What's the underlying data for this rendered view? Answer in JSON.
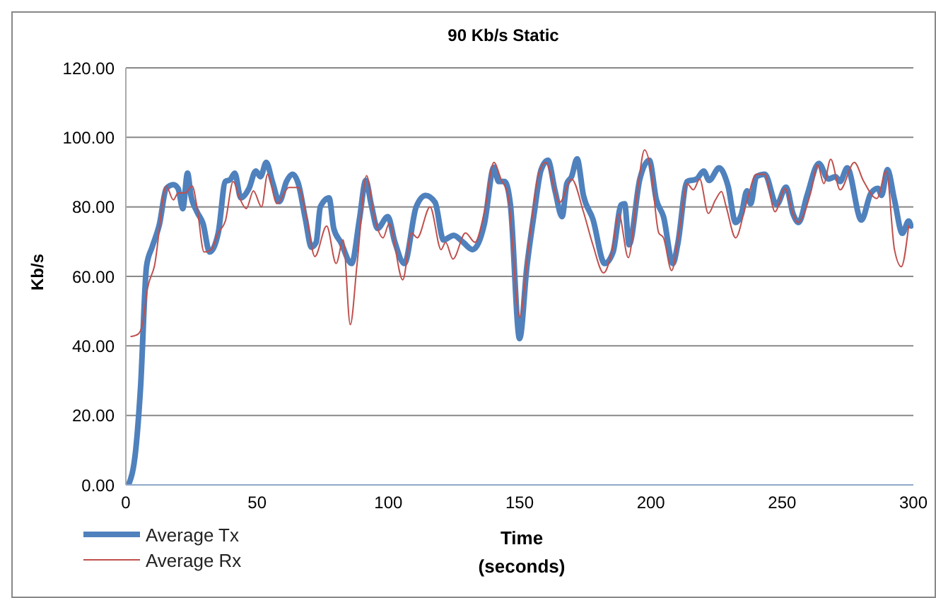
{
  "chart_data": {
    "type": "line",
    "title": "90 Kb/s Static",
    "xlabel": "Time (seconds)",
    "ylabel": "Kb/s",
    "xlim": [
      0,
      300
    ],
    "xticks": [
      0,
      50,
      100,
      150,
      200,
      250,
      300
    ],
    "ylim": [
      0,
      120
    ],
    "yticks": [
      {
        "value": 0,
        "label": "0.00"
      },
      {
        "value": 20,
        "label": "20.00"
      },
      {
        "value": 40,
        "label": "40.00"
      },
      {
        "value": 60,
        "label": "60.00"
      },
      {
        "value": 80,
        "label": "80.00"
      },
      {
        "value": 100,
        "label": "100.00"
      },
      {
        "value": 120,
        "label": "120.00"
      }
    ],
    "grid": "y",
    "legend": "bottom left",
    "marker": "none",
    "series": [
      {
        "name": "Average Tx",
        "color": "#4f81bd",
        "x": [
          1,
          3.8,
          5.6,
          7.9,
          10,
          12.8,
          15.4,
          18.1,
          19.9,
          21.7,
          23.5,
          24.8,
          27.1,
          29.4,
          31.9,
          35.2,
          37.9,
          39.7,
          41.5,
          43.8,
          46.9,
          49.5,
          51.3,
          53.5,
          55.8,
          58.5,
          61.2,
          63.5,
          65.7,
          68.4,
          70.7,
          72.5,
          74.1,
          77.4,
          79.2,
          81.9,
          86,
          89,
          91.4,
          93.5,
          95.9,
          99.8,
          102.5,
          106.1,
          110.6,
          114.2,
          117.8,
          121,
          124.9,
          128.5,
          132.1,
          136.6,
          140.2,
          142,
          144.3,
          146.5,
          150,
          152.8,
          155.5,
          158.2,
          160.8,
          163.5,
          166.2,
          168,
          169.8,
          171.9,
          174.3,
          177.9,
          182.4,
          185.6,
          188.7,
          190,
          191.7,
          195.8,
          199.4,
          202.1,
          204.8,
          208.4,
          210.2,
          213.8,
          217.4,
          220.1,
          222.2,
          226,
          229.4,
          232.3,
          234.5,
          236.6,
          238,
          240.2,
          243.4,
          247.9,
          251.5,
          254.2,
          256.3,
          259.5,
          264,
          267.6,
          270.3,
          272.1,
          274.8,
          280.2,
          283.8,
          286.5,
          287.9,
          290.1,
          292.8,
          295.8,
          298.2,
          299.1
        ],
        "values": [
          0,
          10.3,
          28,
          63,
          68.4,
          75,
          85.3,
          86.4,
          85.3,
          79.5,
          89.7,
          83.3,
          78.6,
          75.2,
          67,
          72.5,
          87.3,
          87.8,
          89.7,
          82.6,
          85.3,
          90.3,
          88.7,
          92.8,
          87.3,
          81.5,
          87.3,
          89.4,
          86.7,
          76.5,
          68.4,
          69.8,
          80,
          82.6,
          73.8,
          69.8,
          63.7,
          76.5,
          87.6,
          80.6,
          73.8,
          77.2,
          69.8,
          63.7,
          80,
          83.3,
          81.3,
          70.5,
          71.8,
          69.8,
          67.7,
          75.2,
          91.4,
          87.3,
          87.3,
          80.6,
          42.1,
          63,
          77.9,
          90.7,
          93.4,
          84.6,
          77.2,
          86.7,
          88.7,
          93.8,
          83.3,
          76.5,
          63.7,
          67,
          80.6,
          80.9,
          69.1,
          88,
          93.4,
          82,
          77.2,
          63.7,
          69.1,
          87.3,
          88,
          90.3,
          87.6,
          91.2,
          86,
          75.5,
          77.9,
          84.6,
          80.9,
          88.7,
          89.4,
          80.6,
          85.7,
          77.9,
          75.5,
          83.3,
          92.5,
          88,
          88.7,
          87.3,
          91.2,
          76.2,
          83.9,
          85.3,
          83.3,
          90.7,
          82,
          72.4,
          75.9,
          74.5
        ]
      },
      {
        "name": "Average Rx",
        "color": "#c0504d",
        "x": [
          2,
          4.7,
          6.5,
          8.2,
          10.9,
          15.4,
          18.1,
          19.9,
          22.6,
          25.3,
          27.1,
          29.8,
          32.5,
          35.2,
          37.9,
          40.9,
          43.3,
          45.9,
          48.6,
          51.7,
          54,
          57.6,
          62.1,
          65.7,
          69,
          72,
          76.5,
          80.1,
          82.8,
          85.5,
          88.1,
          91.7,
          94.4,
          98,
          100.3,
          105.5,
          108.8,
          111,
          115.9,
          120.1,
          121.8,
          124.6,
          129.4,
          133,
          136.6,
          140.2,
          142.9,
          145.6,
          150,
          153.6,
          157.2,
          159.9,
          165.3,
          169.8,
          174.3,
          177.9,
          182,
          185.1,
          187.8,
          191.4,
          194.9,
          197.6,
          200,
          203,
          204.8,
          207.9,
          211,
          213.8,
          216.2,
          218.6,
          221.9,
          224.6,
          226.9,
          228.7,
          232.3,
          236.2,
          240.2,
          243.4,
          247.3,
          251.1,
          254.2,
          256,
          261,
          263.5,
          265.9,
          268.5,
          272.1,
          277.5,
          281.1,
          286.1,
          289.7,
          292.8,
          295.4,
          298.2
        ],
        "values": [
          42.7,
          43.4,
          46.8,
          56.3,
          63,
          86,
          82,
          84,
          84,
          86,
          80,
          67,
          67.7,
          72.5,
          75.9,
          87.3,
          82.6,
          79.5,
          84.6,
          80,
          89.4,
          80.9,
          85.6,
          85.6,
          76.5,
          65.7,
          74.5,
          63.7,
          70.5,
          46.1,
          63.7,
          89,
          77.9,
          71.1,
          75.2,
          59,
          72.5,
          71.1,
          80,
          67.7,
          69.8,
          65,
          72.5,
          69.8,
          78.6,
          92.8,
          88,
          83.3,
          48.2,
          69.8,
          89.4,
          92.8,
          81.3,
          88,
          78.6,
          69.1,
          61,
          67,
          77.9,
          65.4,
          84.6,
          96.4,
          90.7,
          72.5,
          71.1,
          61.7,
          73.8,
          86.7,
          84.9,
          88,
          78.1,
          82,
          84.4,
          80,
          71.1,
          80.6,
          89.4,
          89.4,
          78.6,
          85.3,
          77.9,
          75.5,
          84.4,
          92.1,
          86.7,
          93.7,
          84.9,
          92.8,
          87.3,
          82.4,
          90.3,
          67.7,
          62.8,
          74.5
        ]
      }
    ]
  }
}
